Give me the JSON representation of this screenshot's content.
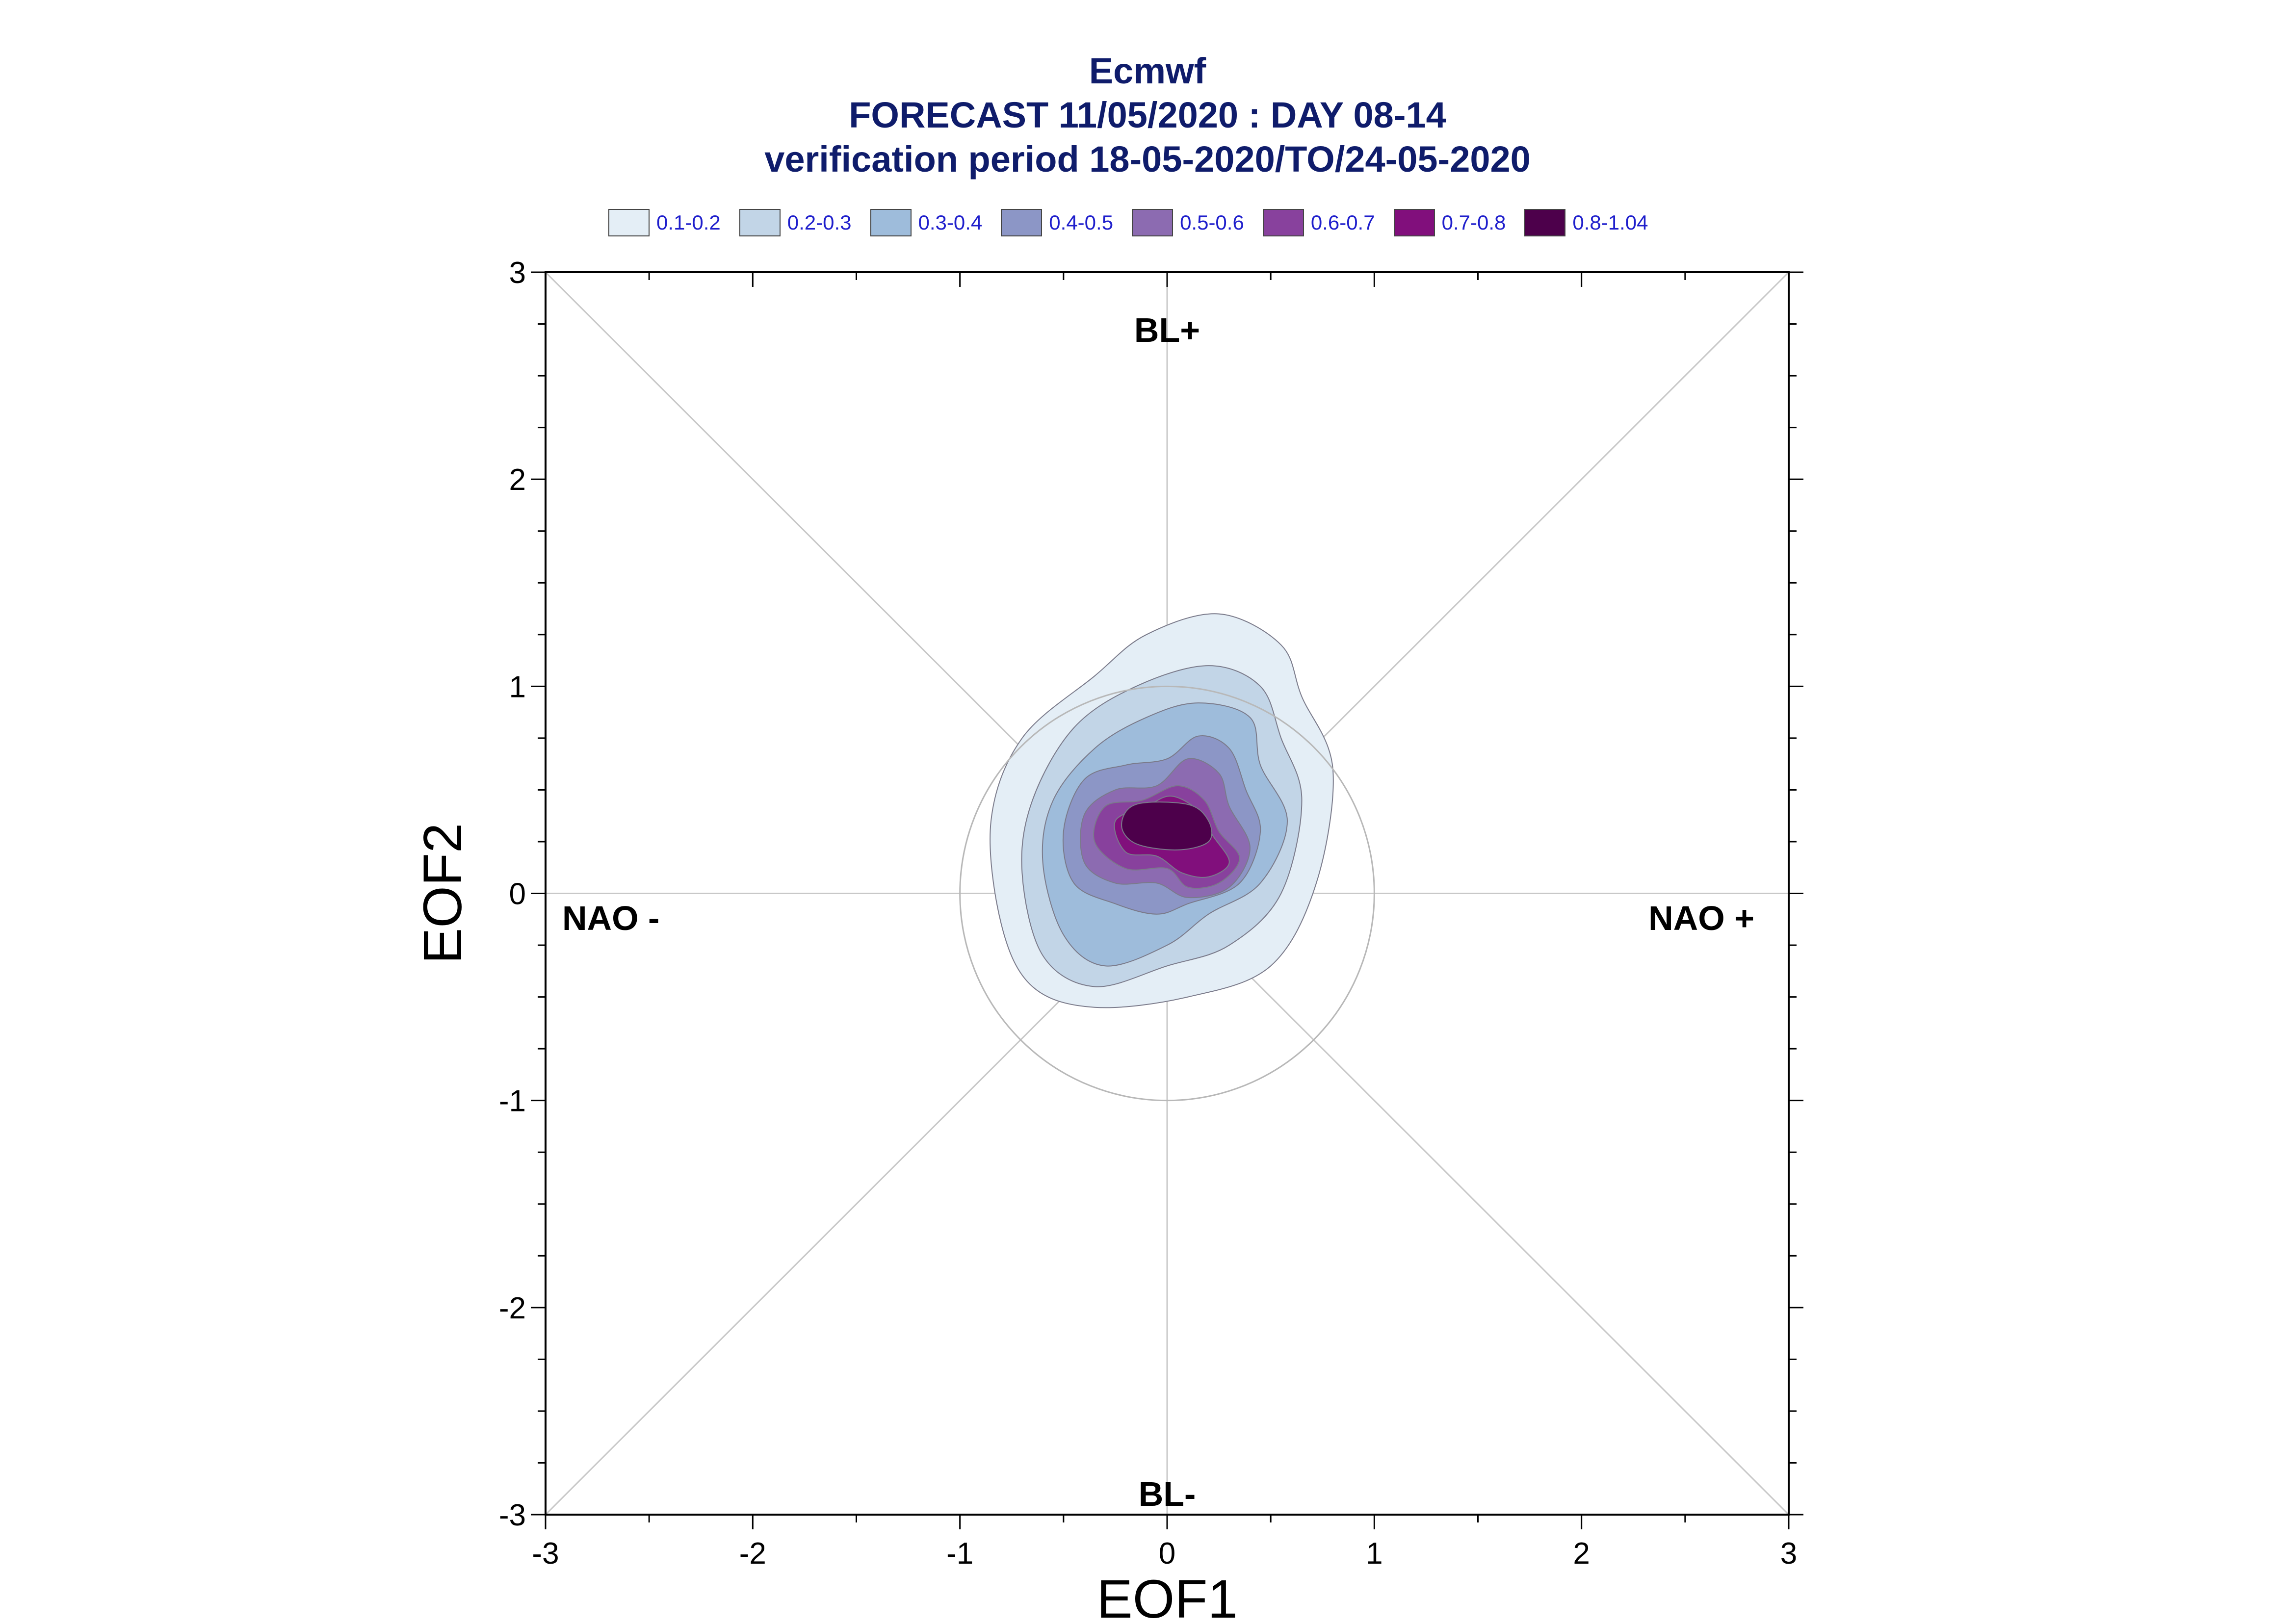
{
  "chart_data": {
    "type": "contour",
    "title_lines": [
      "Ecmwf",
      "FORECAST 11/05/2020 : DAY 08-14",
      "verification period 18-05-2020/TO/24-05-2020"
    ],
    "xlabel": "EOF1",
    "ylabel": "EOF2",
    "xlim": [
      -3,
      3
    ],
    "ylim": [
      -3,
      3
    ],
    "xticks": [
      -3,
      -2,
      -1,
      0,
      1,
      2,
      3
    ],
    "yticks": [
      -3,
      -2,
      -1,
      0,
      1,
      2,
      3
    ],
    "xtick_labels": [
      "-3",
      "-2",
      "-1",
      "0",
      "1",
      "2",
      "3"
    ],
    "ytick_labels": [
      "-3",
      "-2",
      "-1",
      "0",
      "1",
      "2",
      "3"
    ],
    "legend": [
      {
        "label": "0.1-0.2",
        "color": "#e4eef6"
      },
      {
        "label": "0.2-0.3",
        "color": "#c2d5e7"
      },
      {
        "label": "0.3-0.4",
        "color": "#9ebcdb"
      },
      {
        "label": "0.4-0.5",
        "color": "#8c96c6"
      },
      {
        "label": "0.5-0.6",
        "color": "#8c6bb1"
      },
      {
        "label": "0.6-0.7",
        "color": "#88419d"
      },
      {
        "label": "0.7-0.8",
        "color": "#810f7c"
      },
      {
        "label": "0.8-1.04",
        "color": "#4d004b"
      }
    ],
    "regimes": [
      {
        "label": "BL+",
        "x": 0,
        "y": 2.72
      },
      {
        "label": "BL-",
        "x": 0,
        "y": -2.9
      },
      {
        "label": "NAO -",
        "x": -2.55,
        "y": -0.12
      },
      {
        "label": "NAO +",
        "x": 2.55,
        "y": -0.12
      }
    ],
    "reference_circle_radius": 1,
    "contours": [
      {
        "level": "0.1-0.2",
        "points": [
          [
            0.25,
            1.35
          ],
          [
            0.55,
            1.2
          ],
          [
            0.65,
            0.95
          ],
          [
            0.8,
            0.6
          ],
          [
            0.72,
            0.05
          ],
          [
            0.5,
            -0.35
          ],
          [
            0.1,
            -0.5
          ],
          [
            -0.35,
            -0.55
          ],
          [
            -0.65,
            -0.45
          ],
          [
            -0.8,
            -0.15
          ],
          [
            -0.85,
            0.35
          ],
          [
            -0.7,
            0.75
          ],
          [
            -0.35,
            1.05
          ],
          [
            -0.1,
            1.25
          ]
        ]
      },
      {
        "level": "0.2-0.3",
        "points": [
          [
            0.2,
            1.1
          ],
          [
            0.45,
            1.0
          ],
          [
            0.55,
            0.75
          ],
          [
            0.65,
            0.45
          ],
          [
            0.55,
            0.0
          ],
          [
            0.3,
            -0.25
          ],
          [
            0.0,
            -0.35
          ],
          [
            -0.35,
            -0.45
          ],
          [
            -0.6,
            -0.3
          ],
          [
            -0.7,
            0.1
          ],
          [
            -0.65,
            0.45
          ],
          [
            -0.45,
            0.8
          ],
          [
            -0.15,
            1.0
          ]
        ]
      },
      {
        "level": "0.3-0.4",
        "points": [
          [
            0.15,
            0.92
          ],
          [
            0.4,
            0.85
          ],
          [
            0.45,
            0.62
          ],
          [
            0.58,
            0.35
          ],
          [
            0.45,
            0.05
          ],
          [
            0.2,
            -0.1
          ],
          [
            0.0,
            -0.25
          ],
          [
            -0.3,
            -0.35
          ],
          [
            -0.5,
            -0.2
          ],
          [
            -0.6,
            0.15
          ],
          [
            -0.55,
            0.45
          ],
          [
            -0.35,
            0.7
          ],
          [
            -0.1,
            0.85
          ]
        ]
      },
      {
        "level": "0.4-0.5",
        "points": [
          [
            0.15,
            0.76
          ],
          [
            0.3,
            0.7
          ],
          [
            0.38,
            0.5
          ],
          [
            0.45,
            0.3
          ],
          [
            0.35,
            0.05
          ],
          [
            0.1,
            -0.05
          ],
          [
            -0.05,
            -0.1
          ],
          [
            -0.25,
            -0.05
          ],
          [
            -0.45,
            0.05
          ],
          [
            -0.5,
            0.3
          ],
          [
            -0.4,
            0.55
          ],
          [
            -0.2,
            0.62
          ],
          [
            0.0,
            0.65
          ]
        ]
      },
      {
        "level": "0.5-0.6",
        "points": [
          [
            0.1,
            0.65
          ],
          [
            0.25,
            0.58
          ],
          [
            0.3,
            0.42
          ],
          [
            0.4,
            0.22
          ],
          [
            0.3,
            0.03
          ],
          [
            0.1,
            -0.02
          ],
          [
            -0.05,
            0.05
          ],
          [
            -0.25,
            0.05
          ],
          [
            -0.4,
            0.15
          ],
          [
            -0.4,
            0.38
          ],
          [
            -0.25,
            0.5
          ],
          [
            -0.05,
            0.52
          ]
        ]
      },
      {
        "level": "0.6-0.7",
        "points": [
          [
            0.05,
            0.52
          ],
          [
            0.18,
            0.45
          ],
          [
            0.25,
            0.3
          ],
          [
            0.35,
            0.17
          ],
          [
            0.25,
            0.05
          ],
          [
            0.1,
            0.03
          ],
          [
            0.0,
            0.12
          ],
          [
            -0.2,
            0.12
          ],
          [
            -0.35,
            0.25
          ],
          [
            -0.3,
            0.42
          ],
          [
            -0.12,
            0.45
          ]
        ]
      },
      {
        "level": "0.7-0.8",
        "points": [
          [
            0.02,
            0.47
          ],
          [
            0.15,
            0.4
          ],
          [
            0.22,
            0.28
          ],
          [
            0.3,
            0.15
          ],
          [
            0.2,
            0.08
          ],
          [
            0.07,
            0.1
          ],
          [
            -0.05,
            0.18
          ],
          [
            -0.2,
            0.2
          ],
          [
            -0.25,
            0.35
          ],
          [
            -0.1,
            0.42
          ]
        ]
      },
      {
        "level": "0.8-1.04",
        "points": [
          [
            -0.15,
            0.43
          ],
          [
            0.1,
            0.43
          ],
          [
            0.2,
            0.35
          ],
          [
            0.2,
            0.25
          ],
          [
            0.05,
            0.21
          ],
          [
            -0.15,
            0.24
          ],
          [
            -0.22,
            0.33
          ]
        ]
      }
    ]
  }
}
